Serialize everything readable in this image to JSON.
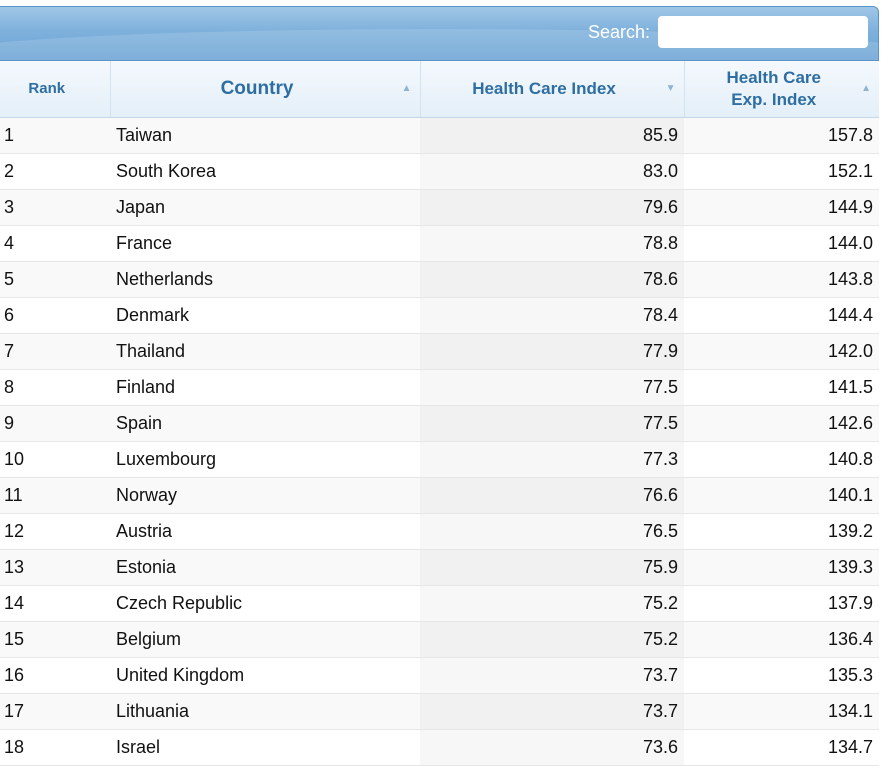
{
  "search": {
    "label": "Search:",
    "value": "",
    "placeholder": ""
  },
  "columns": {
    "rank": "Rank",
    "country": "Country",
    "hci": "Health Care Index",
    "hcei_line1": "Health Care",
    "hcei_line2": "Exp. Index"
  },
  "rows": [
    {
      "rank": "1",
      "country": "Taiwan",
      "hci": "85.9",
      "hcei": "157.8"
    },
    {
      "rank": "2",
      "country": "South Korea",
      "hci": "83.0",
      "hcei": "152.1"
    },
    {
      "rank": "3",
      "country": "Japan",
      "hci": "79.6",
      "hcei": "144.9"
    },
    {
      "rank": "4",
      "country": "France",
      "hci": "78.8",
      "hcei": "144.0"
    },
    {
      "rank": "5",
      "country": "Netherlands",
      "hci": "78.6",
      "hcei": "143.8"
    },
    {
      "rank": "6",
      "country": "Denmark",
      "hci": "78.4",
      "hcei": "144.4"
    },
    {
      "rank": "7",
      "country": "Thailand",
      "hci": "77.9",
      "hcei": "142.0"
    },
    {
      "rank": "8",
      "country": "Finland",
      "hci": "77.5",
      "hcei": "141.5"
    },
    {
      "rank": "9",
      "country": "Spain",
      "hci": "77.5",
      "hcei": "142.6"
    },
    {
      "rank": "10",
      "country": "Luxembourg",
      "hci": "77.3",
      "hcei": "140.8"
    },
    {
      "rank": "11",
      "country": "Norway",
      "hci": "76.6",
      "hcei": "140.1"
    },
    {
      "rank": "12",
      "country": "Austria",
      "hci": "76.5",
      "hcei": "139.2"
    },
    {
      "rank": "13",
      "country": "Estonia",
      "hci": "75.9",
      "hcei": "139.3"
    },
    {
      "rank": "14",
      "country": "Czech Republic",
      "hci": "75.2",
      "hcei": "137.9"
    },
    {
      "rank": "15",
      "country": "Belgium",
      "hci": "75.2",
      "hcei": "136.4"
    },
    {
      "rank": "16",
      "country": "United Kingdom",
      "hci": "73.7",
      "hcei": "135.3"
    },
    {
      "rank": "17",
      "country": "Lithuania",
      "hci": "73.7",
      "hcei": "134.1"
    },
    {
      "rank": "18",
      "country": "Israel",
      "hci": "73.6",
      "hcei": "134.7"
    }
  ]
}
